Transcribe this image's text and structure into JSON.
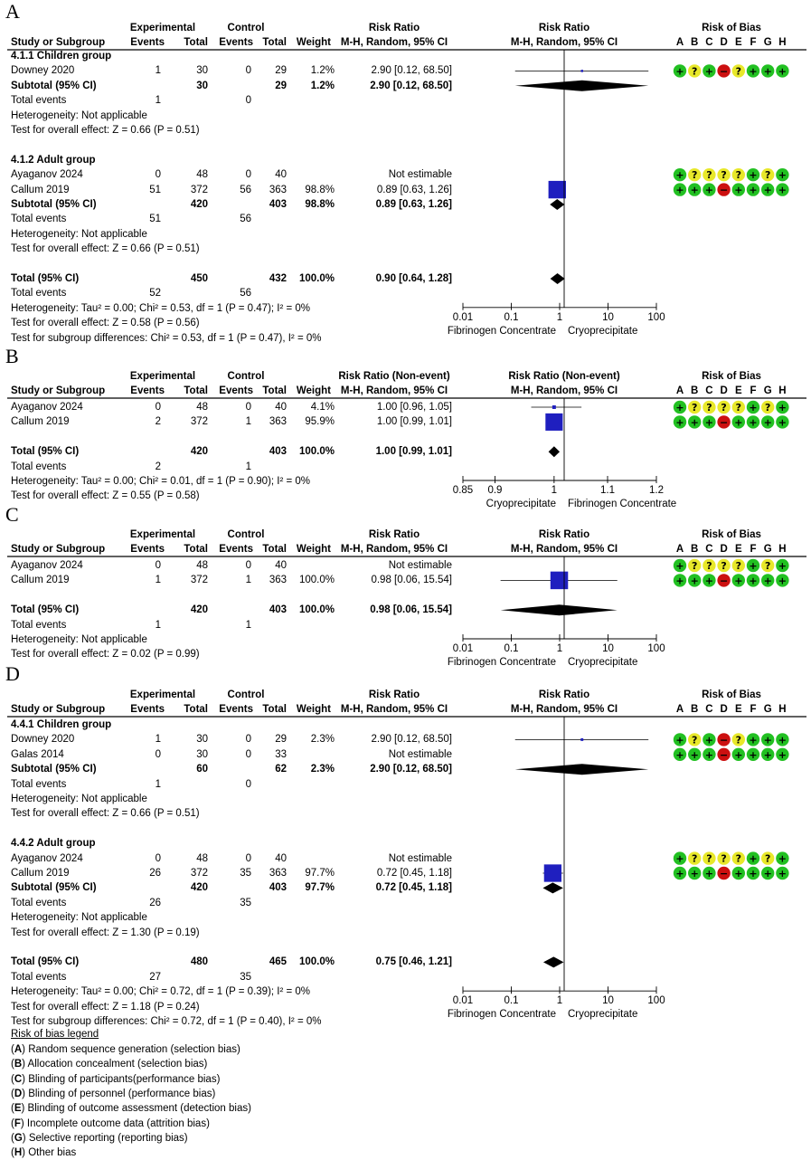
{
  "rob_letters": [
    "A",
    "B",
    "C",
    "D",
    "E",
    "F",
    "G",
    "H"
  ],
  "rob_symbols": {
    "low": "+",
    "unclear": "?",
    "high": "−"
  },
  "colors": {
    "square": "#1f1fbf",
    "diamond": "#000000",
    "rob_low": "#22c022",
    "rob_unclear": "#e8e82a",
    "rob_high": "#cc1010"
  },
  "headers": {
    "study": "Study or Subgroup",
    "experimental": "Experimental",
    "control": "Control",
    "events": "Events",
    "total": "Total",
    "weight": "Weight",
    "method": "M-H, Random, 95% CI",
    "rob": "Risk of Bias"
  },
  "panels": [
    {
      "letter": "A",
      "rr_header": "Risk Ratio",
      "plot_header": "Risk Ratio",
      "rows": [
        {
          "kind": "group",
          "study": "4.1.1 Children group"
        },
        {
          "kind": "study",
          "study": "Downey 2020",
          "e_events": "1",
          "e_total": "30",
          "c_events": "0",
          "c_total": "29",
          "weight": "1.2%",
          "ci": "2.90 [0.12, 68.50]",
          "rr": 2.9,
          "lo": 0.12,
          "hi": 68.5,
          "w": 1.2,
          "rob": [
            "low",
            "unclear",
            "low",
            "high",
            "unclear",
            "low",
            "low",
            "low"
          ]
        },
        {
          "kind": "subtotal",
          "study": "Subtotal (95% CI)",
          "e_total": "30",
          "c_total": "29",
          "weight": "1.2%",
          "ci": "2.90 [0.12, 68.50]",
          "rr": 2.9,
          "lo": 0.12,
          "hi": 68.5
        },
        {
          "kind": "text",
          "study": "Total events",
          "e_events": "1",
          "c_events": "0"
        },
        {
          "kind": "text",
          "study": "Heterogeneity: Not applicable"
        },
        {
          "kind": "text",
          "study": "Test for overall effect: Z = 0.66 (P = 0.51)"
        },
        {
          "kind": "blank"
        },
        {
          "kind": "group",
          "study": "4.1.2 Adult group"
        },
        {
          "kind": "study",
          "study": "Ayaganov 2024",
          "e_events": "0",
          "e_total": "48",
          "c_events": "0",
          "c_total": "40",
          "weight": "",
          "ci": "Not estimable",
          "rob": [
            "low",
            "unclear",
            "unclear",
            "unclear",
            "unclear",
            "low",
            "unclear",
            "low"
          ]
        },
        {
          "kind": "study",
          "study": "Callum 2019",
          "e_events": "51",
          "e_total": "372",
          "c_events": "56",
          "c_total": "363",
          "weight": "98.8%",
          "ci": "0.89 [0.63, 1.26]",
          "rr": 0.89,
          "lo": 0.63,
          "hi": 1.26,
          "w": 98.8,
          "rob": [
            "low",
            "low",
            "low",
            "high",
            "low",
            "low",
            "low",
            "low"
          ]
        },
        {
          "kind": "subtotal",
          "study": "Subtotal (95% CI)",
          "e_total": "420",
          "c_total": "403",
          "weight": "98.8%",
          "ci": "0.89 [0.63, 1.26]",
          "rr": 0.89,
          "lo": 0.63,
          "hi": 1.26
        },
        {
          "kind": "text",
          "study": "Total events",
          "e_events": "51",
          "c_events": "56"
        },
        {
          "kind": "text",
          "study": "Heterogeneity: Not applicable"
        },
        {
          "kind": "text",
          "study": "Test for overall effect: Z = 0.66 (P = 0.51)"
        },
        {
          "kind": "blank"
        },
        {
          "kind": "total",
          "study": "Total (95% CI)",
          "e_total": "450",
          "c_total": "432",
          "weight": "100.0%",
          "ci": "0.90 [0.64, 1.28]",
          "rr": 0.9,
          "lo": 0.64,
          "hi": 1.28
        },
        {
          "kind": "text",
          "study": "Total events",
          "e_events": "52",
          "c_events": "56"
        },
        {
          "kind": "text",
          "study": "Heterogeneity: Tau² = 0.00; Chi² = 0.53, df = 1 (P = 0.47); I² = 0%"
        },
        {
          "kind": "text",
          "study": "Test for overall effect: Z = 0.58 (P = 0.56)"
        },
        {
          "kind": "text",
          "study": "Test for subgroup differences: Chi² = 0.53, df = 1 (P = 0.47), I² = 0%"
        }
      ],
      "axis": {
        "scale": "log",
        "min": 0.01,
        "max": 100,
        "null": 1,
        "ticks": [
          0.01,
          0.1,
          1,
          10,
          100
        ],
        "tick_labels": [
          "0.01",
          "0.1",
          "1",
          "10",
          "100"
        ],
        "favours_left": "Fibrinogen Concentrate",
        "favours_right": "Cryoprecipitate"
      }
    },
    {
      "letter": "B",
      "rr_header": "Risk Ratio (Non-event)",
      "plot_header": "Risk Ratio (Non-event)",
      "rows": [
        {
          "kind": "study",
          "study": "Ayaganov 2024",
          "e_events": "0",
          "e_total": "48",
          "c_events": "0",
          "c_total": "40",
          "weight": "4.1%",
          "ci": "1.00 [0.96, 1.05]",
          "rr": 1.0,
          "lo": 0.96,
          "hi": 1.05,
          "w": 4.1,
          "rob": [
            "low",
            "unclear",
            "unclear",
            "unclear",
            "unclear",
            "low",
            "unclear",
            "low"
          ]
        },
        {
          "kind": "study",
          "study": "Callum 2019",
          "e_events": "2",
          "e_total": "372",
          "c_events": "1",
          "c_total": "363",
          "weight": "95.9%",
          "ci": "1.00 [0.99, 1.01]",
          "rr": 1.0,
          "lo": 0.99,
          "hi": 1.01,
          "w": 95.9,
          "rob": [
            "low",
            "low",
            "low",
            "high",
            "low",
            "low",
            "low",
            "low"
          ]
        },
        {
          "kind": "blank"
        },
        {
          "kind": "total",
          "study": "Total (95% CI)",
          "e_total": "420",
          "c_total": "403",
          "weight": "100.0%",
          "ci": "1.00 [0.99, 1.01]",
          "rr": 1.0,
          "lo": 0.99,
          "hi": 1.01
        },
        {
          "kind": "text",
          "study": "Total events",
          "e_events": "2",
          "c_events": "1"
        },
        {
          "kind": "text",
          "study": "Heterogeneity: Tau² = 0.00; Chi² = 0.01, df = 1 (P = 0.90); I² = 0%"
        },
        {
          "kind": "text",
          "study": "Test for overall effect: Z = 0.55 (P = 0.58)"
        }
      ],
      "axis": {
        "scale": "log",
        "min": 0.85,
        "max": 1.2,
        "null": 1,
        "ticks": [
          0.85,
          0.9,
          1,
          1.1,
          1.2
        ],
        "tick_labels": [
          "0.85",
          "0.9",
          "1",
          "1.1",
          "1.2"
        ],
        "favours_left": "Cryoprecipitate",
        "favours_right": "Fibrinogen Concentrate"
      }
    },
    {
      "letter": "C",
      "rr_header": "Risk Ratio",
      "plot_header": "Risk Ratio",
      "rows": [
        {
          "kind": "study",
          "study": "Ayaganov 2024",
          "e_events": "0",
          "e_total": "48",
          "c_events": "0",
          "c_total": "40",
          "weight": "",
          "ci": "Not estimable",
          "rob": [
            "low",
            "unclear",
            "unclear",
            "unclear",
            "unclear",
            "low",
            "unclear",
            "low"
          ]
        },
        {
          "kind": "study",
          "study": "Callum 2019",
          "e_events": "1",
          "e_total": "372",
          "c_events": "1",
          "c_total": "363",
          "weight": "100.0%",
          "ci": "0.98 [0.06, 15.54]",
          "rr": 0.98,
          "lo": 0.06,
          "hi": 15.54,
          "w": 100,
          "rob": [
            "low",
            "low",
            "low",
            "high",
            "low",
            "low",
            "low",
            "low"
          ]
        },
        {
          "kind": "blank"
        },
        {
          "kind": "total",
          "study": "Total (95% CI)",
          "e_total": "420",
          "c_total": "403",
          "weight": "100.0%",
          "ci": "0.98 [0.06, 15.54]",
          "rr": 0.98,
          "lo": 0.06,
          "hi": 15.54
        },
        {
          "kind": "text",
          "study": "Total events",
          "e_events": "1",
          "c_events": "1"
        },
        {
          "kind": "text",
          "study": "Heterogeneity: Not applicable"
        },
        {
          "kind": "text",
          "study": "Test for overall effect: Z = 0.02 (P = 0.99)"
        }
      ],
      "axis": {
        "scale": "log",
        "min": 0.01,
        "max": 100,
        "null": 1,
        "ticks": [
          0.01,
          0.1,
          1,
          10,
          100
        ],
        "tick_labels": [
          "0.01",
          "0.1",
          "1",
          "10",
          "100"
        ],
        "favours_left": "Fibrinogen Concentrate",
        "favours_right": "Cryoprecipitate"
      }
    },
    {
      "letter": "D",
      "rr_header": "Risk Ratio",
      "plot_header": "Risk Ratio",
      "rows": [
        {
          "kind": "group",
          "study": "4.4.1 Children group"
        },
        {
          "kind": "study",
          "study": "Downey 2020",
          "e_events": "1",
          "e_total": "30",
          "c_events": "0",
          "c_total": "29",
          "weight": "2.3%",
          "ci": "2.90 [0.12, 68.50]",
          "rr": 2.9,
          "lo": 0.12,
          "hi": 68.5,
          "w": 2.3,
          "rob": [
            "low",
            "unclear",
            "low",
            "high",
            "unclear",
            "low",
            "low",
            "low"
          ]
        },
        {
          "kind": "study",
          "study": "Galas 2014",
          "e_events": "0",
          "e_total": "30",
          "c_events": "0",
          "c_total": "33",
          "weight": "",
          "ci": "Not estimable",
          "rob": [
            "low",
            "low",
            "low",
            "high",
            "low",
            "low",
            "low",
            "low"
          ]
        },
        {
          "kind": "subtotal",
          "study": "Subtotal (95% CI)",
          "e_total": "60",
          "c_total": "62",
          "weight": "2.3%",
          "ci": "2.90 [0.12, 68.50]",
          "rr": 2.9,
          "lo": 0.12,
          "hi": 68.5
        },
        {
          "kind": "text",
          "study": "Total events",
          "e_events": "1",
          "c_events": "0"
        },
        {
          "kind": "text",
          "study": "Heterogeneity: Not applicable"
        },
        {
          "kind": "text",
          "study": "Test for overall effect: Z = 0.66 (P = 0.51)"
        },
        {
          "kind": "blank"
        },
        {
          "kind": "group",
          "study": "4.4.2 Adult group"
        },
        {
          "kind": "study",
          "study": "Ayaganov 2024",
          "e_events": "0",
          "e_total": "48",
          "c_events": "0",
          "c_total": "40",
          "weight": "",
          "ci": "Not estimable",
          "rob": [
            "low",
            "unclear",
            "unclear",
            "unclear",
            "unclear",
            "low",
            "unclear",
            "low"
          ]
        },
        {
          "kind": "study",
          "study": "Callum 2019",
          "e_events": "26",
          "e_total": "372",
          "c_events": "35",
          "c_total": "363",
          "weight": "97.7%",
          "ci": "0.72 [0.45, 1.18]",
          "rr": 0.72,
          "lo": 0.45,
          "hi": 1.18,
          "w": 97.7,
          "rob": [
            "low",
            "low",
            "low",
            "high",
            "low",
            "low",
            "low",
            "low"
          ]
        },
        {
          "kind": "subtotal",
          "study": "Subtotal (95% CI)",
          "e_total": "420",
          "c_total": "403",
          "weight": "97.7%",
          "ci": "0.72 [0.45, 1.18]",
          "rr": 0.72,
          "lo": 0.45,
          "hi": 1.18
        },
        {
          "kind": "text",
          "study": "Total events",
          "e_events": "26",
          "c_events": "35"
        },
        {
          "kind": "text",
          "study": "Heterogeneity: Not applicable"
        },
        {
          "kind": "text",
          "study": "Test for overall effect: Z = 1.30 (P = 0.19)"
        },
        {
          "kind": "blank"
        },
        {
          "kind": "total",
          "study": "Total (95% CI)",
          "e_total": "480",
          "c_total": "465",
          "weight": "100.0%",
          "ci": "0.75 [0.46, 1.21]",
          "rr": 0.75,
          "lo": 0.46,
          "hi": 1.21
        },
        {
          "kind": "text",
          "study": "Total events",
          "e_events": "27",
          "c_events": "35"
        },
        {
          "kind": "text",
          "study": "Heterogeneity: Tau² = 0.00; Chi² = 0.72, df = 1 (P = 0.39); I² = 0%"
        },
        {
          "kind": "text",
          "study": "Test for overall effect: Z = 1.18 (P = 0.24)"
        },
        {
          "kind": "text",
          "study": "Test for subgroup differences: Chi² = 0.72, df = 1 (P = 0.40), I² = 0%"
        }
      ],
      "axis": {
        "scale": "log",
        "min": 0.01,
        "max": 100,
        "null": 1,
        "ticks": [
          0.01,
          0.1,
          1,
          10,
          100
        ],
        "tick_labels": [
          "0.01",
          "0.1",
          "1",
          "10",
          "100"
        ],
        "favours_left": "Fibrinogen Concentrate",
        "favours_right": "Cryoprecipitate"
      }
    }
  ],
  "legend": {
    "title": "Risk of bias legend",
    "items": [
      {
        "letter": "A",
        "text": " Random sequence generation (selection bias)"
      },
      {
        "letter": "B",
        "text": " Allocation concealment (selection bias)"
      },
      {
        "letter": "C",
        "text": " Blinding of participants(performance bias)"
      },
      {
        "letter": "D",
        "text": " Blinding of personnel (performance bias)"
      },
      {
        "letter": "E",
        "text": " Blinding of outcome assessment (detection bias)"
      },
      {
        "letter": "F",
        "text": " Incomplete outcome data (attrition bias)"
      },
      {
        "letter": "G",
        "text": " Selective reporting (reporting bias)"
      },
      {
        "letter": "H",
        "text": " Other bias"
      }
    ]
  },
  "chart_data": [
    {
      "type": "forest",
      "panel": "A",
      "scale": "log",
      "xlim": [
        0.01,
        100
      ],
      "xticks": [
        0.01,
        0.1,
        1,
        10,
        100
      ],
      "xlabel_left": "Fibrinogen Concentrate",
      "xlabel_right": "Cryoprecipitate",
      "studies": [
        {
          "name": "Downey 2020",
          "rr": 2.9,
          "lo": 0.12,
          "hi": 68.5,
          "weight": 1.2
        },
        {
          "name": "Ayaganov 2024",
          "rr": null
        },
        {
          "name": "Callum 2019",
          "rr": 0.89,
          "lo": 0.63,
          "hi": 1.26,
          "weight": 98.8
        }
      ],
      "pooled": {
        "rr": 0.9,
        "lo": 0.64,
        "hi": 1.28
      }
    },
    {
      "type": "forest",
      "panel": "B",
      "scale": "log",
      "xlim": [
        0.85,
        1.2
      ],
      "xticks": [
        0.85,
        0.9,
        1,
        1.1,
        1.2
      ],
      "xlabel_left": "Cryoprecipitate",
      "xlabel_right": "Fibrinogen Concentrate",
      "studies": [
        {
          "name": "Ayaganov 2024",
          "rr": 1.0,
          "lo": 0.96,
          "hi": 1.05,
          "weight": 4.1
        },
        {
          "name": "Callum 2019",
          "rr": 1.0,
          "lo": 0.99,
          "hi": 1.01,
          "weight": 95.9
        }
      ],
      "pooled": {
        "rr": 1.0,
        "lo": 0.99,
        "hi": 1.01
      }
    },
    {
      "type": "forest",
      "panel": "C",
      "scale": "log",
      "xlim": [
        0.01,
        100
      ],
      "xticks": [
        0.01,
        0.1,
        1,
        10,
        100
      ],
      "xlabel_left": "Fibrinogen Concentrate",
      "xlabel_right": "Cryoprecipitate",
      "studies": [
        {
          "name": "Ayaganov 2024",
          "rr": null
        },
        {
          "name": "Callum 2019",
          "rr": 0.98,
          "lo": 0.06,
          "hi": 15.54,
          "weight": 100
        }
      ],
      "pooled": {
        "rr": 0.98,
        "lo": 0.06,
        "hi": 15.54
      }
    },
    {
      "type": "forest",
      "panel": "D",
      "scale": "log",
      "xlim": [
        0.01,
        100
      ],
      "xticks": [
        0.01,
        0.1,
        1,
        10,
        100
      ],
      "xlabel_left": "Fibrinogen Concentrate",
      "xlabel_right": "Cryoprecipitate",
      "studies": [
        {
          "name": "Downey 2020",
          "rr": 2.9,
          "lo": 0.12,
          "hi": 68.5,
          "weight": 2.3
        },
        {
          "name": "Galas 2014",
          "rr": null
        },
        {
          "name": "Ayaganov 2024",
          "rr": null
        },
        {
          "name": "Callum 2019",
          "rr": 0.72,
          "lo": 0.45,
          "hi": 1.18,
          "weight": 97.7
        }
      ],
      "pooled": {
        "rr": 0.75,
        "lo": 0.46,
        "hi": 1.21
      }
    }
  ]
}
